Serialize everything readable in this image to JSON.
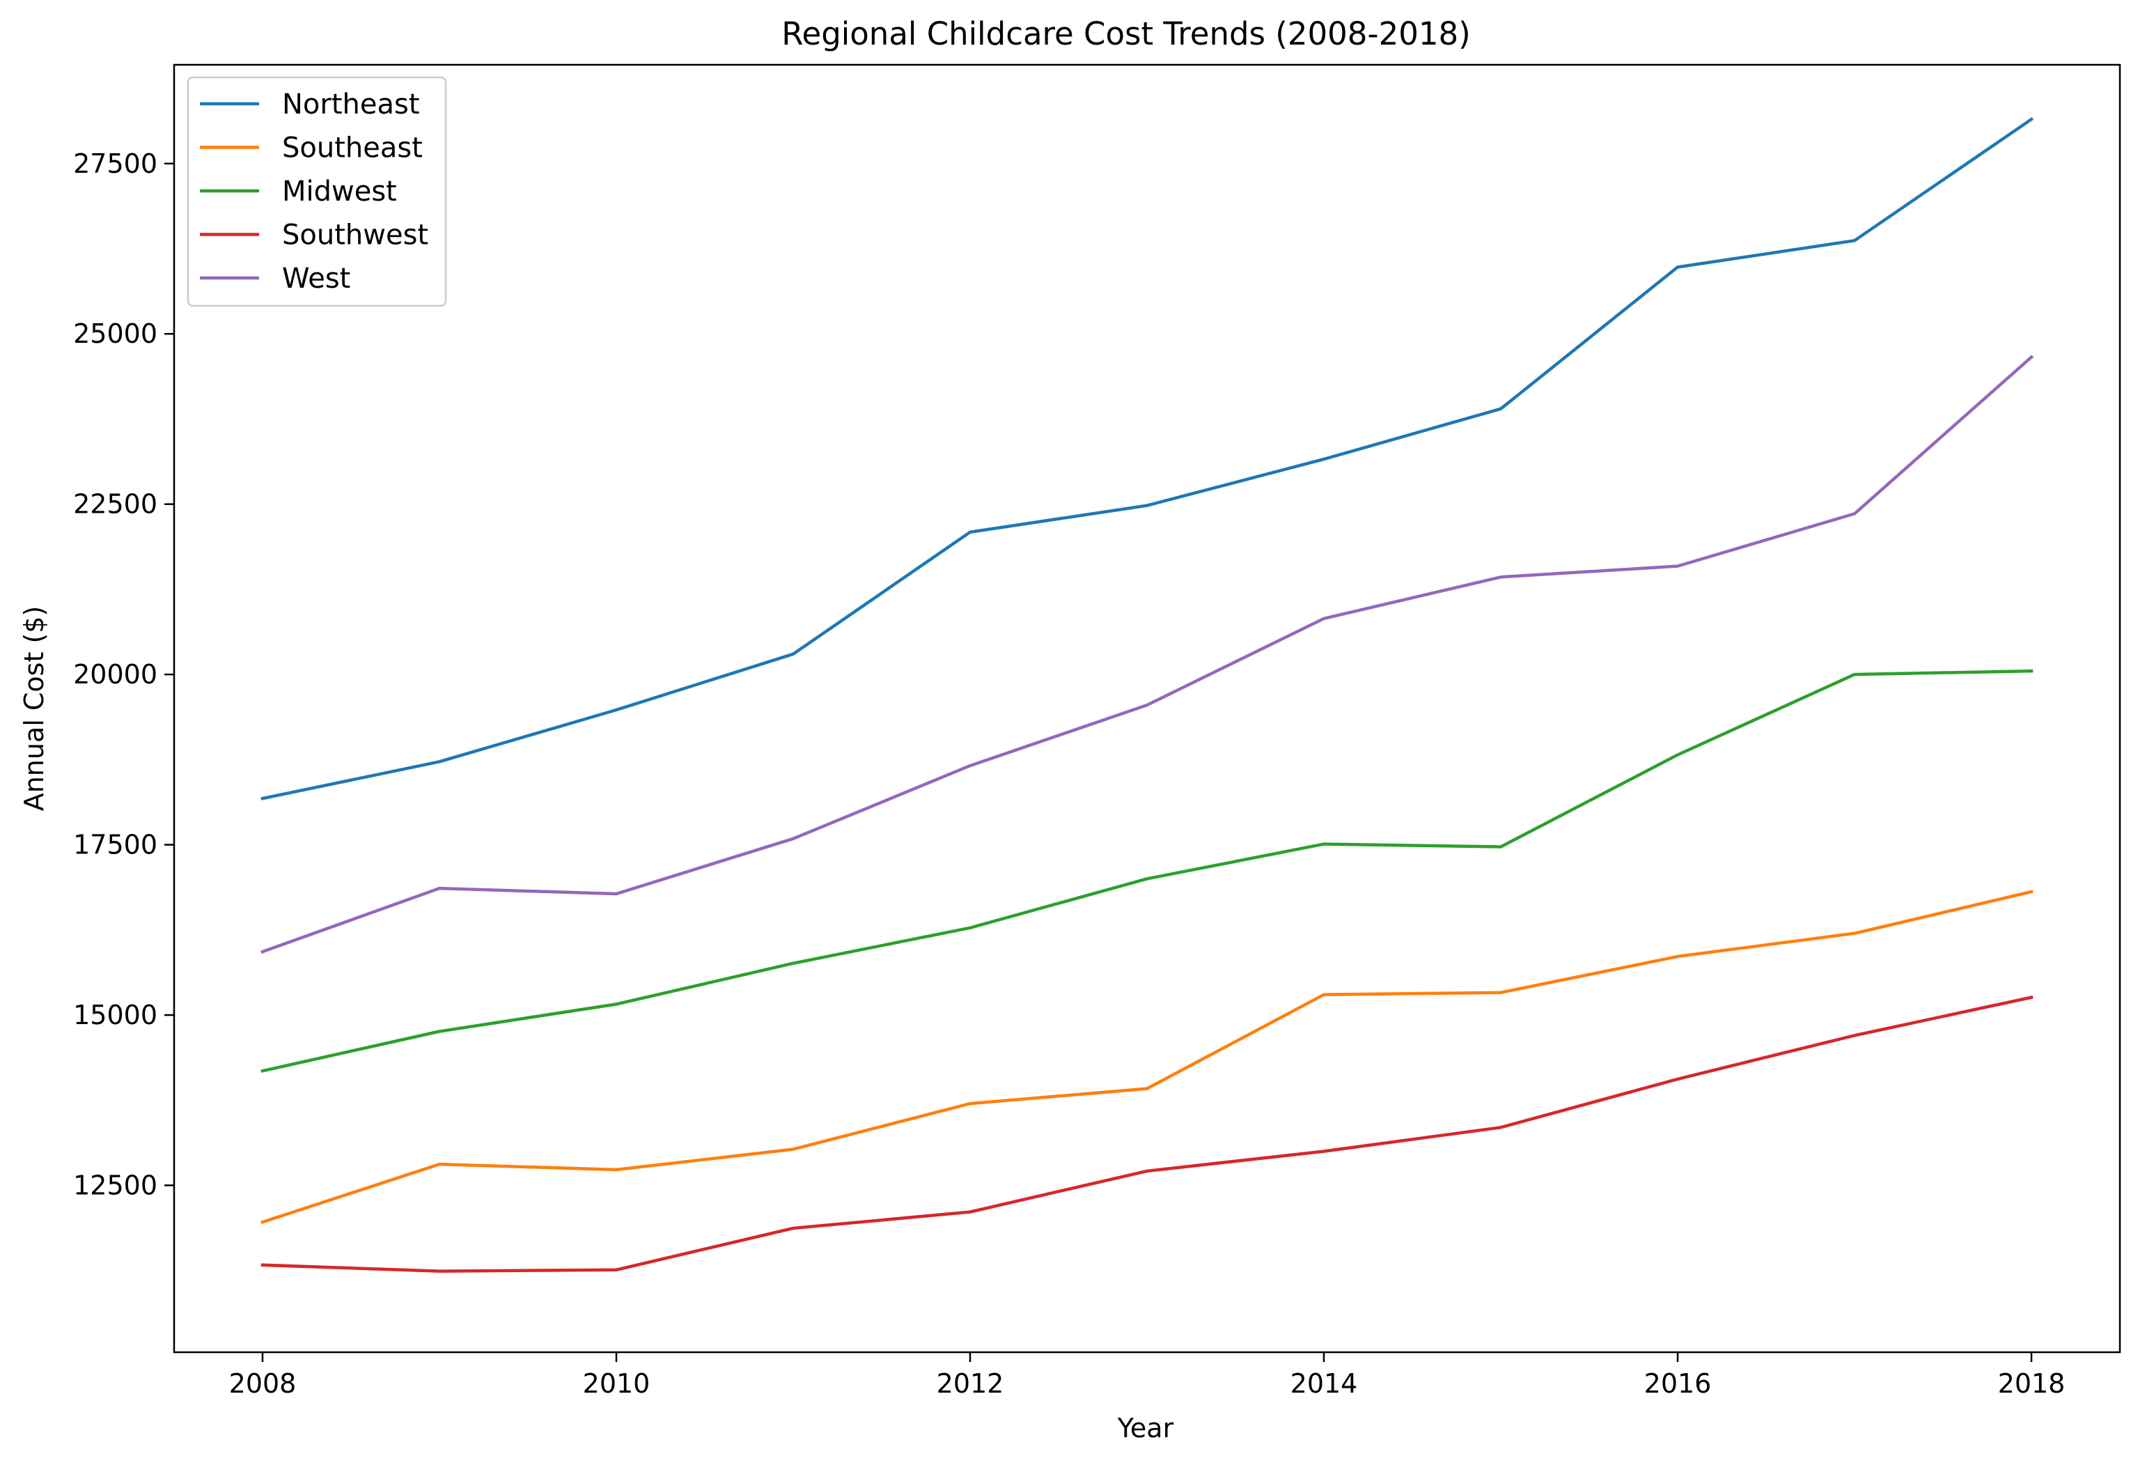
{
  "chart_data": {
    "type": "line",
    "title": "Regional Childcare Cost Trends (2008-2018)",
    "xlabel": "Year",
    "ylabel": "Annual Cost ($)",
    "x": [
      2008,
      2009,
      2010,
      2011,
      2012,
      2013,
      2014,
      2015,
      2016,
      2017,
      2018
    ],
    "xlim": [
      2007.5,
      2018.5
    ],
    "ylim": [
      10050,
      28950
    ],
    "xticks": [
      2008,
      2010,
      2012,
      2014,
      2016,
      2018
    ],
    "yticks": [
      12500,
      15000,
      17500,
      20000,
      22500,
      25000,
      27500
    ],
    "grid": false,
    "legend_position": "top-left",
    "series": [
      {
        "name": "Northeast",
        "color": "#1f77b4",
        "values": [
          18180,
          18720,
          19480,
          20300,
          22090,
          22480,
          23160,
          23900,
          25980,
          26370,
          28150
        ]
      },
      {
        "name": "Southeast",
        "color": "#ff7f0e",
        "values": [
          11960,
          12810,
          12730,
          13030,
          13700,
          13920,
          15300,
          15330,
          15860,
          16200,
          16810
        ]
      },
      {
        "name": "Midwest",
        "color": "#2ca02c",
        "values": [
          14180,
          14760,
          15160,
          15760,
          16280,
          17000,
          17510,
          17470,
          18820,
          20000,
          20050
        ]
      },
      {
        "name": "Southwest",
        "color": "#d62728",
        "values": [
          11330,
          11240,
          11260,
          11870,
          12110,
          12710,
          13000,
          13350,
          14060,
          14700,
          15260
        ]
      },
      {
        "name": "West",
        "color": "#9467bd",
        "values": [
          15930,
          16860,
          16780,
          17590,
          18660,
          19550,
          20820,
          21430,
          21590,
          22360,
          24660
        ]
      }
    ]
  }
}
